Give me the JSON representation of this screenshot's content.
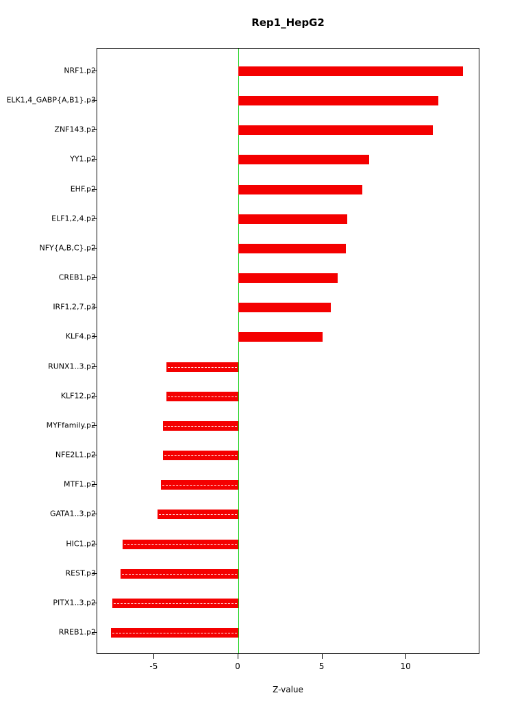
{
  "title": "Rep1_HepG2",
  "xlabel": "Z-value",
  "colors": {
    "bar": "#f40000",
    "zero_line": "#00cc00",
    "box_border": "#000000",
    "text": "#000000"
  },
  "chart_data": {
    "type": "bar",
    "orientation": "horizontal",
    "title": "Rep1_HepG2",
    "xlabel": "Z-value",
    "ylabel": "",
    "xlim": [
      -8.4,
      14.4
    ],
    "x_ticks": [
      -5,
      0,
      5,
      10
    ],
    "grid": false,
    "legend": false,
    "zero_reference_line": 0,
    "categories": [
      "NRF1.p2",
      "ELK1,4_GABP{A,B1}.p3",
      "ZNF143.p2",
      "YY1.p2",
      "EHF.p2",
      "ELF1,2,4.p2",
      "NFY{A,B,C}.p2",
      "CREB1.p2",
      "IRF1,2,7.p3",
      "KLF4.p3",
      "RUNX1..3.p2",
      "KLF12.p2",
      "MYFfamily.p2",
      "NFE2L1.p2",
      "MTF1.p2",
      "GATA1..3.p2",
      "HIC1.p2",
      "REST.p3",
      "PITX1..3.p2",
      "RREB1.p2"
    ],
    "values": [
      13.4,
      11.9,
      11.6,
      7.8,
      7.4,
      6.5,
      6.4,
      5.9,
      5.5,
      5.0,
      -4.3,
      -4.3,
      -4.5,
      -4.5,
      -4.6,
      -4.8,
      -6.9,
      -7.0,
      -7.5,
      -7.6
    ]
  }
}
